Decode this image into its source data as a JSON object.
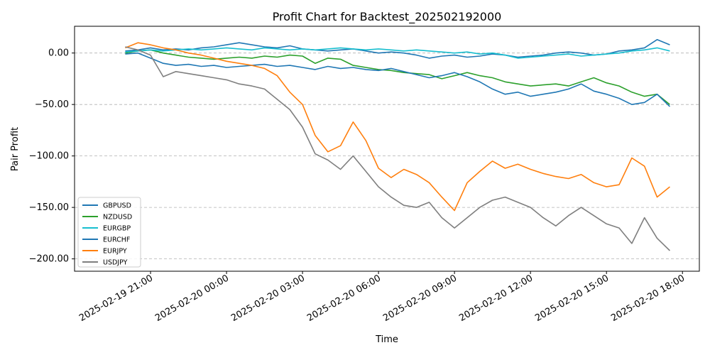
{
  "chart_data": {
    "type": "line",
    "title": "Profit Chart for Backtest_202502192000",
    "xlabel": "Time",
    "ylabel": "Pair Profit",
    "xlim": [
      "2025-02-19 18:00",
      "2025-02-20 18:40"
    ],
    "ylim": [
      -212,
      26
    ],
    "grid": "horizontal dashed",
    "legend": "lower-left",
    "x_ticks": [
      "2025-02-19 21:00",
      "2025-02-20 00:00",
      "2025-02-20 03:00",
      "2025-02-20 06:00",
      "2025-02-20 09:00",
      "2025-02-20 12:00",
      "2025-02-20 15:00",
      "2025-02-20 18:00"
    ],
    "y_ticks": [
      0,
      -50,
      -100,
      -150,
      -200
    ],
    "y_tick_labels": [
      "0.00",
      "−50.00",
      "−100.00",
      "−150.00",
      "−200.00"
    ],
    "x": [
      "2025-02-19 20:00",
      "2025-02-19 20:30",
      "2025-02-19 21:00",
      "2025-02-19 21:30",
      "2025-02-19 22:00",
      "2025-02-19 22:30",
      "2025-02-19 23:00",
      "2025-02-19 23:30",
      "2025-02-20 00:00",
      "2025-02-20 00:30",
      "2025-02-20 01:00",
      "2025-02-20 01:30",
      "2025-02-20 02:00",
      "2025-02-20 02:30",
      "2025-02-20 03:00",
      "2025-02-20 03:30",
      "2025-02-20 04:00",
      "2025-02-20 04:30",
      "2025-02-20 05:00",
      "2025-02-20 05:30",
      "2025-02-20 06:00",
      "2025-02-20 06:30",
      "2025-02-20 07:00",
      "2025-02-20 07:30",
      "2025-02-20 08:00",
      "2025-02-20 08:30",
      "2025-02-20 09:00",
      "2025-02-20 09:30",
      "2025-02-20 10:00",
      "2025-02-20 10:30",
      "2025-02-20 11:00",
      "2025-02-20 11:30",
      "2025-02-20 12:00",
      "2025-02-20 12:30",
      "2025-02-20 13:00",
      "2025-02-20 13:30",
      "2025-02-20 14:00",
      "2025-02-20 14:30",
      "2025-02-20 15:00",
      "2025-02-20 15:30",
      "2025-02-20 16:00",
      "2025-02-20 16:30",
      "2025-02-20 17:00",
      "2025-02-20 17:30"
    ],
    "series": [
      {
        "name": "GBPUSD",
        "color": "#1f77b4",
        "values": [
          2,
          3,
          5,
          3,
          4,
          3,
          5,
          6,
          8,
          10,
          8,
          6,
          5,
          7,
          4,
          3,
          2,
          3,
          4,
          2,
          0,
          1,
          0,
          -2,
          -5,
          -3,
          -2,
          -4,
          -3,
          -1,
          -2,
          -4,
          -3,
          -2,
          0,
          1,
          0,
          -2,
          -1,
          2,
          3,
          5,
          13,
          8
        ]
      },
      {
        "name": "NZDUSD",
        "color": "#2ca02c",
        "values": [
          0,
          2,
          3,
          0,
          -2,
          -4,
          -5,
          -6,
          -5,
          -4,
          -5,
          -3,
          -4,
          -2,
          -3,
          -10,
          -5,
          -6,
          -12,
          -14,
          -16,
          -17,
          -19,
          -20,
          -21,
          -25,
          -22,
          -19,
          -22,
          -24,
          -28,
          -30,
          -32,
          -31,
          -30,
          -32,
          -28,
          -24,
          -29,
          -32,
          -38,
          -42,
          -40,
          -50
        ]
      },
      {
        "name": "EURGBP",
        "color": "#17becf",
        "values": [
          1,
          2,
          3,
          2,
          3,
          4,
          3,
          4,
          5,
          4,
          3,
          5,
          4,
          3,
          4,
          3,
          4,
          5,
          4,
          3,
          4,
          3,
          2,
          3,
          2,
          1,
          0,
          1,
          -1,
          0,
          -2,
          -5,
          -4,
          -3,
          -2,
          -1,
          -3,
          -2,
          -1,
          0,
          2,
          3,
          5,
          2
        ]
      },
      {
        "name": "EURCHF",
        "color": "#1f77b4",
        "values": [
          -1,
          0,
          -5,
          -10,
          -12,
          -11,
          -13,
          -12,
          -14,
          -13,
          -12,
          -11,
          -13,
          -12,
          -14,
          -16,
          -13,
          -15,
          -14,
          -16,
          -17,
          -15,
          -18,
          -21,
          -24,
          -22,
          -19,
          -23,
          -28,
          -35,
          -40,
          -38,
          -42,
          -40,
          -38,
          -35,
          -30,
          -37,
          -40,
          -44,
          -50,
          -48,
          -40,
          -52
        ]
      },
      {
        "name": "EURJPY",
        "color": "#ff7f0e",
        "values": [
          5,
          10,
          8,
          5,
          3,
          0,
          -2,
          -5,
          -8,
          -10,
          -12,
          -15,
          -22,
          -38,
          -50,
          -80,
          -96,
          -90,
          -67,
          -85,
          -112,
          -121,
          -113,
          -118,
          -126,
          -140,
          -153,
          -126,
          -115,
          -105,
          -112,
          -108,
          -113,
          -117,
          -120,
          -122,
          -118,
          -126,
          -130,
          -128,
          -102,
          -110,
          -140,
          -130
        ]
      },
      {
        "name": "USDJPY",
        "color": "#7f7f7f",
        "values": [
          6,
          3,
          -2,
          -23,
          -18,
          -20,
          -22,
          -24,
          -26,
          -30,
          -32,
          -35,
          -45,
          -55,
          -72,
          -98,
          -104,
          -113,
          -100,
          -115,
          -130,
          -140,
          -148,
          -150,
          -145,
          -160,
          -170,
          -160,
          -150,
          -143,
          -140,
          -145,
          -150,
          -160,
          -168,
          -158,
          -150,
          -158,
          -166,
          -170,
          -185,
          -160,
          -180,
          -192
        ]
      }
    ]
  }
}
